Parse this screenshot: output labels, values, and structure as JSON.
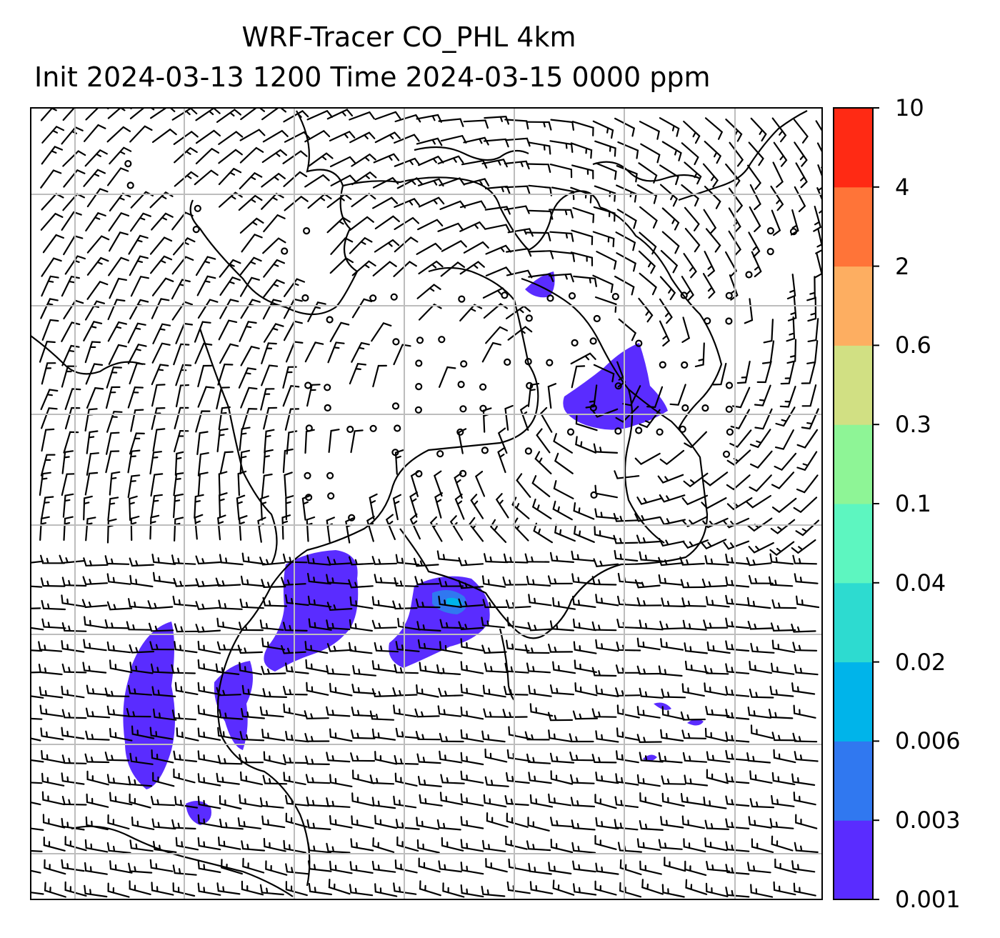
{
  "title": {
    "line1": "WRF-Tracer CO_PHL 4km",
    "line2": "Init 2024-03-13 1200 Time 2024-03-15 0000 ppm"
  },
  "colorbar": {
    "ticks": [
      "0.001",
      "0.003",
      "0.006",
      "0.02",
      "0.04",
      "0.1",
      "0.3",
      "0.6",
      "2",
      "4",
      "10"
    ],
    "colors": [
      "#5a2cff",
      "#3078f0",
      "#00b4ea",
      "#2ddbd0",
      "#5df6c0",
      "#8ef596",
      "#d1e083",
      "#fdae61",
      "#ff7438",
      "#ff2a14"
    ]
  },
  "map": {
    "gridlines": true,
    "plume_color": "#5a2cff",
    "wind_barbs": "black",
    "coastline_color": "black"
  }
}
